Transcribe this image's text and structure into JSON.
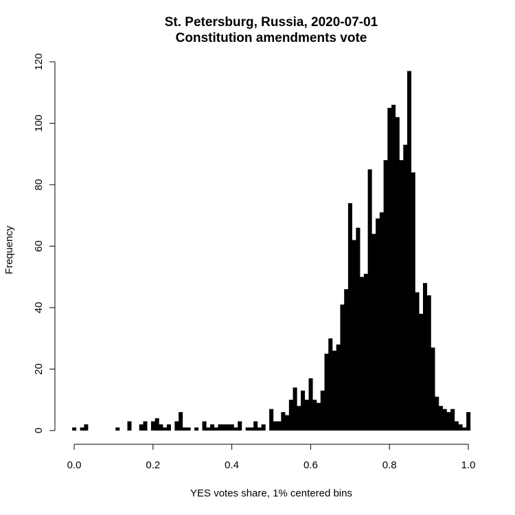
{
  "chart_data": {
    "type": "bar",
    "title_line1": "St. Petersburg, Russia, 2020-07-01",
    "title_line2": "Constitution amendments vote",
    "xlabel": "YES votes share, 1% centered bins",
    "ylabel": "Frequency",
    "xlim": [
      0.0,
      1.0
    ],
    "ylim": [
      0,
      120
    ],
    "x_ticks": [
      "0.0",
      "0.2",
      "0.4",
      "0.6",
      "0.8",
      "1.0"
    ],
    "y_ticks": [
      "0",
      "20",
      "40",
      "60",
      "80",
      "100",
      "120"
    ],
    "bin_width": 0.01,
    "bin_centers": [
      0.0,
      0.01,
      0.02,
      0.03,
      0.04,
      0.05,
      0.06,
      0.07,
      0.08,
      0.09,
      0.1,
      0.11,
      0.12,
      0.13,
      0.14,
      0.15,
      0.16,
      0.17,
      0.18,
      0.19,
      0.2,
      0.21,
      0.22,
      0.23,
      0.24,
      0.25,
      0.26,
      0.27,
      0.28,
      0.29,
      0.3,
      0.31,
      0.32,
      0.33,
      0.34,
      0.35,
      0.36,
      0.37,
      0.38,
      0.39,
      0.4,
      0.41,
      0.42,
      0.43,
      0.44,
      0.45,
      0.46,
      0.47,
      0.48,
      0.49,
      0.5,
      0.51,
      0.52,
      0.53,
      0.54,
      0.55,
      0.56,
      0.57,
      0.58,
      0.59,
      0.6,
      0.61,
      0.62,
      0.63,
      0.64,
      0.65,
      0.66,
      0.67,
      0.68,
      0.69,
      0.7,
      0.71,
      0.72,
      0.73,
      0.74,
      0.75,
      0.76,
      0.77,
      0.78,
      0.79,
      0.8,
      0.81,
      0.82,
      0.83,
      0.84,
      0.85,
      0.86,
      0.87,
      0.88,
      0.89,
      0.9,
      0.91,
      0.92,
      0.93,
      0.94,
      0.95,
      0.96,
      0.97,
      0.98,
      0.99,
      1.0
    ],
    "values": [
      1,
      0,
      1,
      2,
      0,
      0,
      0,
      0,
      0,
      0,
      0,
      1,
      0,
      0,
      3,
      0,
      0,
      2,
      3,
      0,
      3,
      4,
      2,
      1,
      2,
      0,
      3,
      6,
      1,
      1,
      0,
      1,
      0,
      3,
      1,
      2,
      1,
      2,
      2,
      2,
      2,
      1,
      3,
      0,
      1,
      1,
      3,
      1,
      2,
      0,
      7,
      3,
      3,
      6,
      5,
      10,
      14,
      8,
      13,
      10,
      17,
      10,
      9,
      13,
      25,
      30,
      26,
      28,
      41,
      46,
      74,
      62,
      66,
      50,
      51,
      85,
      64,
      69,
      71,
      88,
      105,
      106,
      102,
      88,
      93,
      117,
      84,
      45,
      38,
      48,
      44,
      27,
      11,
      8,
      7,
      6,
      7,
      3,
      2,
      1,
      6
    ],
    "bar_color": "#000000",
    "grid": false
  }
}
